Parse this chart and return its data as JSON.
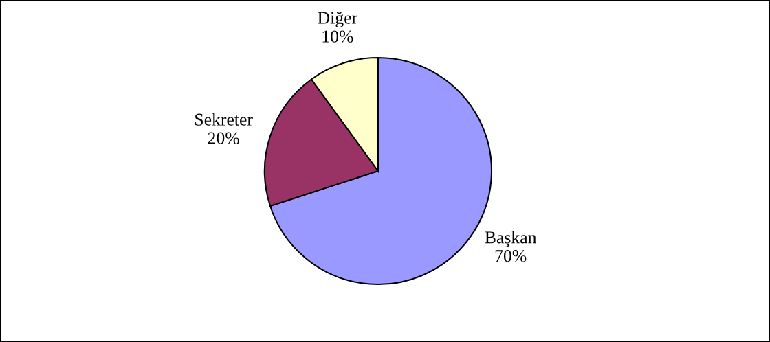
{
  "chart_data": {
    "type": "pie",
    "categories": [
      "Başkan",
      "Sekreter",
      "Diğer"
    ],
    "values": [
      70,
      20,
      10
    ],
    "colors": [
      "#9999ff",
      "#993366",
      "#ffffcc"
    ],
    "value_labels": [
      "70%",
      "20%",
      "10%"
    ]
  }
}
